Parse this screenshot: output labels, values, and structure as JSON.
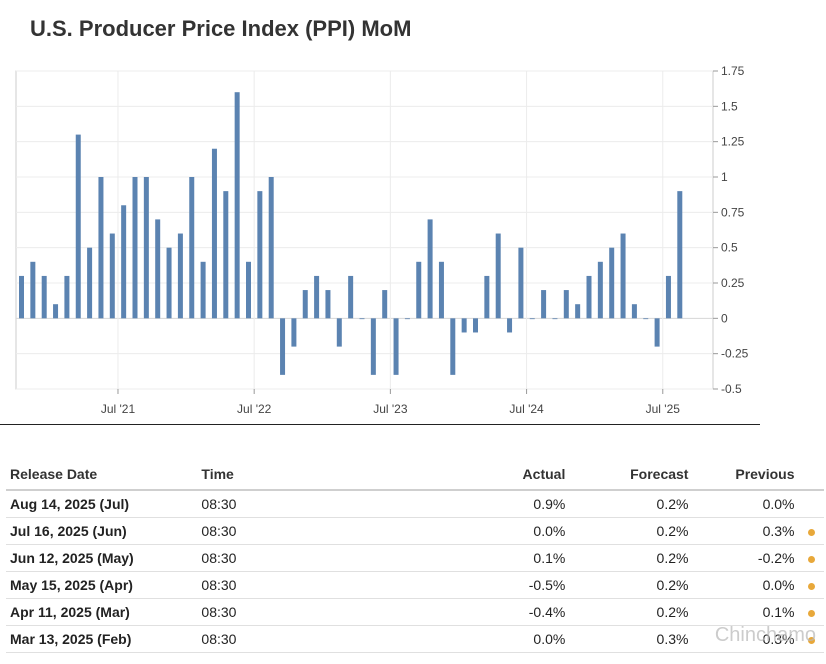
{
  "page": {
    "title": "U.S. Producer Price Index (PPI) MoM"
  },
  "chart_data": {
    "type": "bar",
    "title": "U.S. Producer Price Index (PPI) MoM",
    "ylim": [
      -0.5,
      1.75
    ],
    "y_ticks": [
      1.75,
      1.5,
      1.25,
      1,
      0.75,
      0.5,
      0.25,
      0,
      -0.25,
      -0.5
    ],
    "y_tick_labels": [
      "1.75",
      "1.5",
      "1.25",
      "1",
      "0.75",
      "0.5",
      "0.25",
      "0",
      "-0.25",
      "-0.5"
    ],
    "x_tick_labels": [
      "Jul '21",
      "Jul '22",
      "Jul '23",
      "Jul '24",
      "Jul '25"
    ],
    "x_tick_positions": [
      8.5,
      20.5,
      32.5,
      44.5,
      56.5
    ],
    "grid": true,
    "bar_color": "#5b83b1",
    "values": [
      0.3,
      0.4,
      0.3,
      0.1,
      0.3,
      1.3,
      0.5,
      1.0,
      0.6,
      0.8,
      1.0,
      1.0,
      0.7,
      0.5,
      0.6,
      1.0,
      0.4,
      1.2,
      0.9,
      1.6,
      0.4,
      0.9,
      1.0,
      -0.4,
      -0.2,
      0.2,
      0.3,
      0.2,
      -0.2,
      0.3,
      0.0,
      -0.4,
      0.2,
      -0.4,
      0.0,
      0.4,
      0.7,
      0.4,
      -0.4,
      -0.1,
      -0.1,
      0.3,
      0.6,
      -0.1,
      0.5,
      0.0,
      0.2,
      0.0,
      0.2,
      0.1,
      0.3,
      0.4,
      0.5,
      0.6,
      0.1,
      0.0,
      -0.2,
      0.3,
      0.9
    ]
  },
  "table": {
    "headers": {
      "date": "Release Date",
      "time": "Time",
      "actual": "Actual",
      "forecast": "Forecast",
      "previous": "Previous"
    },
    "rows": [
      {
        "date": "Aug 14, 2025 (Jul)",
        "time": "08:30",
        "actual": "0.9%",
        "actual_status": "pos",
        "forecast": "0.2%",
        "previous": "0.0%",
        "previous_status": "neutral",
        "revised": false
      },
      {
        "date": "Jul 16, 2025 (Jun)",
        "time": "08:30",
        "actual": "0.0%",
        "actual_status": "neg",
        "forecast": "0.2%",
        "previous": "0.3%",
        "previous_status": "pos",
        "revised": true
      },
      {
        "date": "Jun 12, 2025 (May)",
        "time": "08:30",
        "actual": "0.1%",
        "actual_status": "neg",
        "forecast": "0.2%",
        "previous": "-0.2%",
        "previous_status": "pos",
        "revised": true
      },
      {
        "date": "May 15, 2025 (Apr)",
        "time": "08:30",
        "actual": "-0.5%",
        "actual_status": "neg",
        "forecast": "0.2%",
        "previous": "0.0%",
        "previous_status": "pos",
        "revised": true
      },
      {
        "date": "Apr 11, 2025 (Mar)",
        "time": "08:30",
        "actual": "-0.4%",
        "actual_status": "neg",
        "forecast": "0.2%",
        "previous": "0.1%",
        "previous_status": "pos",
        "revised": true
      },
      {
        "date": "Mar 13, 2025 (Feb)",
        "time": "08:30",
        "actual": "0.0%",
        "actual_status": "neg",
        "forecast": "0.3%",
        "previous": "0.3%",
        "previous_status": "pos",
        "revised": true
      }
    ]
  },
  "colors": {
    "positive": "#1a9c1a",
    "negative": "#e0201a",
    "revised_dot": "#e8a83a"
  },
  "watermark": {
    "text": "Chinchamo"
  }
}
